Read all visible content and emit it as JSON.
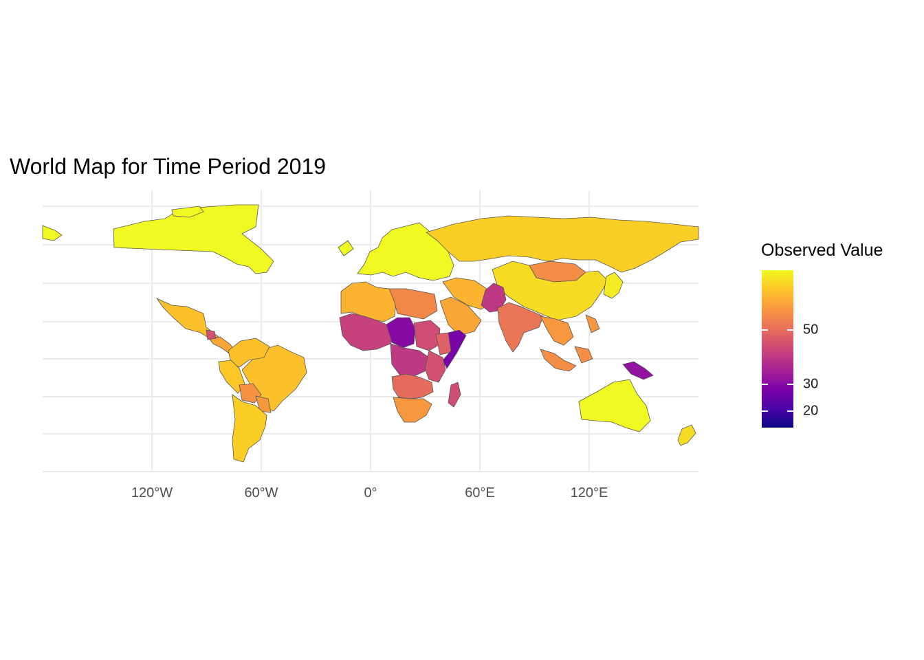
{
  "title": "World Map for Time Period 2019",
  "legend": {
    "title": "Observed Value",
    "breaks": [
      {
        "value": 50,
        "label": "50"
      },
      {
        "value": 30,
        "label": "30"
      },
      {
        "value": 20,
        "label": "20"
      }
    ],
    "range": [
      14,
      72
    ],
    "palette": [
      "#0d0887",
      "#4b03a7",
      "#7e03a8",
      "#a92395",
      "#cc4778",
      "#e66c5c",
      "#f89540",
      "#fdc527",
      "#f0f921"
    ]
  },
  "x_axis": {
    "ticks": [
      {
        "lon": -120,
        "label": "120°W"
      },
      {
        "lon": -60,
        "label": "60°W"
      },
      {
        "lon": 0,
        "label": "0°"
      },
      {
        "lon": 60,
        "label": "60°E"
      },
      {
        "lon": 120,
        "label": "120°E"
      }
    ]
  },
  "chart_data": {
    "type": "choropleth",
    "title": "World Map for Time Period 2019",
    "legend_title": "Observed Value",
    "projection": "equirectangular",
    "lon_range": [
      -180,
      180
    ],
    "lat_range": [
      -58,
      84
    ],
    "grid": true,
    "legend_position": "right",
    "regions": [
      {
        "name": "Canada",
        "value": 72
      },
      {
        "name": "United States / Greenland",
        "value": 72
      },
      {
        "name": "Mexico",
        "value": 64
      },
      {
        "name": "Central America",
        "value": 60
      },
      {
        "name": "Guatemala",
        "value": 45
      },
      {
        "name": "Brazil",
        "value": 64
      },
      {
        "name": "Colombia / Venezuela",
        "value": 64
      },
      {
        "name": "Peru",
        "value": 65
      },
      {
        "name": "Bolivia",
        "value": 57
      },
      {
        "name": "Paraguay",
        "value": 58
      },
      {
        "name": "Argentina / Chile",
        "value": 66
      },
      {
        "name": "Europe",
        "value": 72
      },
      {
        "name": "Russia",
        "value": 66
      },
      {
        "name": "Mongolia",
        "value": 56
      },
      {
        "name": "China",
        "value": 68
      },
      {
        "name": "Japan",
        "value": 70
      },
      {
        "name": "North Africa",
        "value": 62
      },
      {
        "name": "Libya / Egypt",
        "value": 55
      },
      {
        "name": "Arabian Peninsula",
        "value": 60
      },
      {
        "name": "Iran / Iraq",
        "value": 62
      },
      {
        "name": "Afghanistan / Pakistan",
        "value": 40
      },
      {
        "name": "India",
        "value": 52
      },
      {
        "name": "Southeast Asia",
        "value": 58
      },
      {
        "name": "Indonesia",
        "value": 56
      },
      {
        "name": "Papua New Guinea",
        "value": 32
      },
      {
        "name": "West Africa",
        "value": 42
      },
      {
        "name": "Chad / Niger",
        "value": 30
      },
      {
        "name": "Sudan",
        "value": 44
      },
      {
        "name": "Ethiopia",
        "value": 48
      },
      {
        "name": "Somalia",
        "value": 28
      },
      {
        "name": "Central Africa",
        "value": 40
      },
      {
        "name": "East Africa",
        "value": 45
      },
      {
        "name": "Angola / Zambia",
        "value": 50
      },
      {
        "name": "Southern Africa",
        "value": 58
      },
      {
        "name": "Madagascar",
        "value": 44
      },
      {
        "name": "Australia",
        "value": 72
      },
      {
        "name": "New Zealand",
        "value": 68
      }
    ]
  }
}
